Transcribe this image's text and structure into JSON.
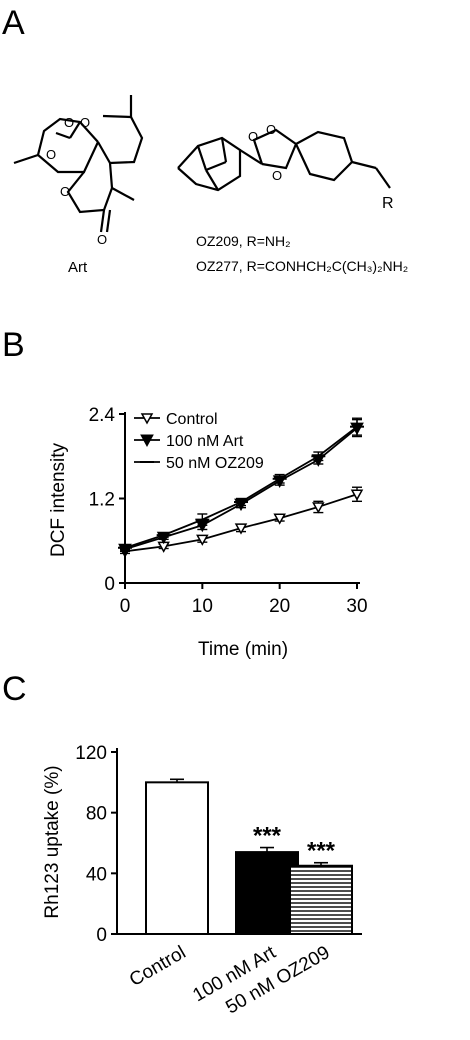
{
  "panels": {
    "a": "A",
    "b": "B",
    "c": "C"
  },
  "structures": {
    "art_label": "Art",
    "ozonide_substituent": "R",
    "oz209_line": "OZ209, R=NH₂",
    "oz277_line": "OZ277, R=CONHCH₂C(CH₃)₂NH₂"
  },
  "chart_data": [
    {
      "type": "line",
      "xlabel": "Time (min)",
      "ylabel": "DCF intensity",
      "xlim": [
        0,
        30
      ],
      "ylim": [
        0,
        2.4
      ],
      "x_ticks": [
        "0",
        "10",
        "20",
        "30"
      ],
      "y_ticks": [
        "0",
        "1.2",
        "2.4"
      ],
      "legend_position": "top-left",
      "grid": false,
      "series": [
        {
          "name": "Control",
          "marker": "open-triangle-down",
          "x": [
            0,
            5,
            10,
            15,
            20,
            25,
            30
          ],
          "y": [
            0.45,
            0.52,
            0.62,
            0.78,
            0.92,
            1.08,
            1.26
          ],
          "err": [
            0.03,
            0.03,
            0.04,
            0.05,
            0.04,
            0.08,
            0.1
          ]
        },
        {
          "name": "100 nM Art",
          "marker": "filled-triangle-down",
          "x": [
            0,
            5,
            10,
            15,
            20,
            25,
            30
          ],
          "y": [
            0.48,
            0.65,
            0.82,
            1.12,
            1.45,
            1.75,
            2.2
          ],
          "err": [
            0.03,
            0.03,
            0.06,
            0.05,
            0.06,
            0.06,
            0.12
          ]
        },
        {
          "name": "50 nM OZ209",
          "marker": "horizontal-bar",
          "x": [
            0,
            5,
            10,
            15,
            20,
            25,
            30
          ],
          "y": [
            0.5,
            0.68,
            0.9,
            1.15,
            1.48,
            1.8,
            2.22
          ],
          "err": [
            0.03,
            0.03,
            0.08,
            0.05,
            0.06,
            0.06,
            0.12
          ]
        }
      ]
    },
    {
      "type": "bar",
      "ylabel": "Rh123 uptake (%)",
      "ylim": [
        0,
        120
      ],
      "y_ticks": [
        "0",
        "40",
        "80",
        "120"
      ],
      "categories": [
        "Control",
        "100 nM Art",
        "50 nM OZ209"
      ],
      "values": [
        100,
        54,
        45
      ],
      "err": [
        2,
        3,
        2
      ],
      "fills": [
        "#ffffff",
        "#000000",
        "stripes"
      ],
      "annotations": [
        "",
        "***",
        "***"
      ]
    }
  ]
}
